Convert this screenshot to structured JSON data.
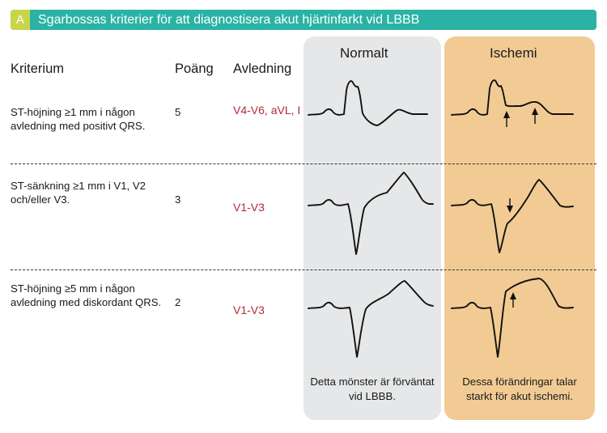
{
  "header": {
    "badge": "A",
    "title": "Sgarbossas kriterier för att diagnostisera akut hjärtinfarkt vid LBBB"
  },
  "columns": {
    "criterion": "Kriterium",
    "points": "Poäng",
    "leads": "Avledning",
    "normal": "Normalt",
    "ischemia": "Ischemi"
  },
  "rows": [
    {
      "criterion": "ST-höjning ≥1 mm i någon avledning med positivt QRS.",
      "points": "5",
      "leads": "V4-V6, aVL, I"
    },
    {
      "criterion": "ST-sänkning ≥1 mm i V1, V2 och/eller V3.",
      "points": "3",
      "leads": "V1-V3"
    },
    {
      "criterion": "ST-höjning ≥5 mm i någon avledning med diskordant QRS.",
      "points": "2",
      "leads": "V1-V3"
    }
  ],
  "captions": {
    "normal": "Detta mönster är förväntat vid LBBB.",
    "ischemia": "Dessa förändringar talar starkt för akut ischemi."
  },
  "colors": {
    "header": "#2ab3a5",
    "badge": "#c8d44a",
    "normal_panel": "#e6e7e8",
    "ischemia_panel": "#f2cb94",
    "lead_text": "#b5283a"
  }
}
